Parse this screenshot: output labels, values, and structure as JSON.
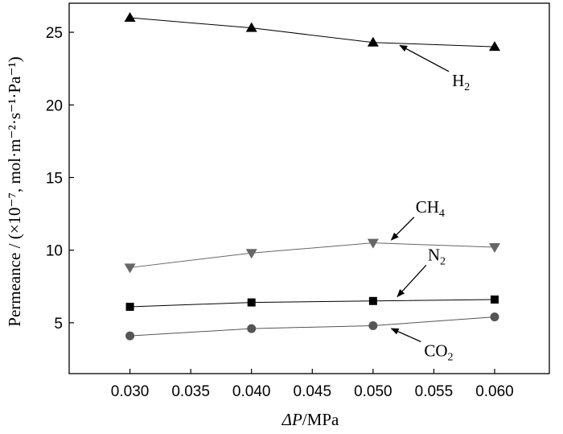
{
  "chart_data": {
    "type": "line",
    "xlabel_symbol": "ΔP",
    "xlabel_unit": "/MPa",
    "ylabel": "Permeance / (×10⁻⁷, mol·m⁻²·s⁻¹·Pa⁻¹)",
    "xlim": [
      0.025,
      0.0645
    ],
    "ylim": [
      1.5,
      27
    ],
    "xticks": [
      0.03,
      0.035,
      0.04,
      0.045,
      0.05,
      0.055,
      0.06
    ],
    "xtick_labels": [
      "0.030",
      "0.035",
      "0.040",
      "0.045",
      "0.050",
      "0.055",
      "0.060"
    ],
    "yticks": [
      5,
      10,
      15,
      20,
      25
    ],
    "ytick_labels": [
      "5",
      "10",
      "15",
      "20",
      "25"
    ],
    "x": [
      0.03,
      0.04,
      0.05,
      0.06
    ],
    "series": [
      {
        "name": "H₂",
        "marker": "triangle-up",
        "color": "#000000",
        "values": [
          26.0,
          25.3,
          24.3,
          24.0
        ]
      },
      {
        "name": "CH₄",
        "marker": "triangle-down",
        "color": "#666666",
        "values": [
          8.8,
          9.8,
          10.5,
          10.2
        ]
      },
      {
        "name": "N₂",
        "marker": "square",
        "color": "#000000",
        "values": [
          6.1,
          6.4,
          6.5,
          6.6
        ]
      },
      {
        "name": "CO₂",
        "marker": "circle",
        "color": "#555555",
        "values": [
          4.1,
          4.6,
          4.8,
          5.4
        ]
      }
    ],
    "annotations": [
      {
        "label": "H",
        "sub": "2",
        "series": "H₂",
        "text_x": 0.0565,
        "text_y": 21.3,
        "arrow_to": [
          0.0522,
          24.1
        ]
      },
      {
        "label": "CH",
        "sub": "4",
        "series": "CH₄",
        "text_x": 0.0535,
        "text_y": 12.6,
        "arrow_to": [
          0.0515,
          10.7
        ]
      },
      {
        "label": "N",
        "sub": "2",
        "series": "N₂",
        "text_x": 0.0545,
        "text_y": 9.3,
        "arrow_to": [
          0.052,
          6.8
        ]
      },
      {
        "label": "CO",
        "sub": "2",
        "series": "CO₂",
        "text_x": 0.0542,
        "text_y": 2.7,
        "arrow_to": [
          0.0515,
          4.6
        ]
      }
    ],
    "grid": false,
    "legend": "none"
  }
}
